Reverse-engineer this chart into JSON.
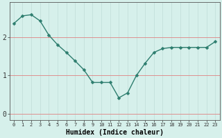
{
  "x": [
    0,
    1,
    2,
    3,
    4,
    5,
    6,
    7,
    8,
    9,
    10,
    11,
    12,
    13,
    14,
    15,
    16,
    17,
    18,
    19,
    20,
    21,
    22,
    23
  ],
  "y": [
    2.35,
    2.55,
    2.58,
    2.42,
    2.05,
    1.8,
    1.6,
    1.38,
    1.15,
    0.82,
    0.82,
    0.82,
    0.42,
    0.55,
    1.0,
    1.32,
    1.6,
    1.7,
    1.73,
    1.73,
    1.73,
    1.73,
    1.73,
    1.88
  ],
  "line_color": "#2d7d6e",
  "marker": "D",
  "marker_size": 2.5,
  "bg_color": "#d6f0eb",
  "hgrid_color": "#e08080",
  "vgrid_color": "#c0ddd8",
  "xlabel": "Humidex (Indice chaleur)",
  "xlabel_fontsize": 7,
  "xlabel_fontname": "monospace",
  "yticks": [
    0,
    1,
    2
  ],
  "ylim": [
    -0.15,
    2.9
  ],
  "xlim": [
    -0.5,
    23.5
  ],
  "xtick_labels": [
    "0",
    "1",
    "2",
    "3",
    "4",
    "5",
    "6",
    "7",
    "8",
    "9",
    "10",
    "11",
    "12",
    "13",
    "14",
    "15",
    "16",
    "17",
    "18",
    "19",
    "20",
    "21",
    "22",
    "23"
  ],
  "xtick_fontsize": 5,
  "ytick_fontsize": 7,
  "line_width": 1.0
}
